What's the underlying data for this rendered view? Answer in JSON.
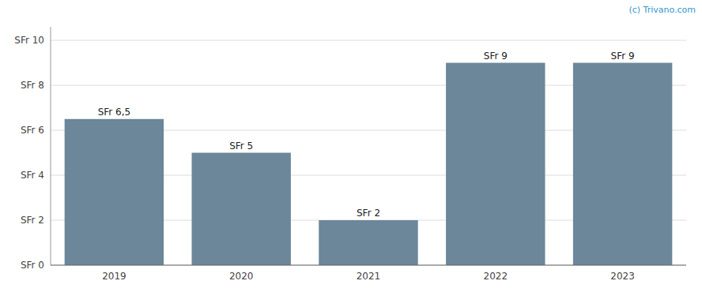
{
  "chart_data": {
    "type": "bar",
    "categories": [
      "2019",
      "2020",
      "2021",
      "2022",
      "2023"
    ],
    "values": [
      6.5,
      5.0,
      2.0,
      9.0,
      9.0
    ],
    "value_labels": [
      "SFr 6,5",
      "SFr 5",
      "SFr 2",
      "SFr 9",
      "SFr 9"
    ],
    "color": "#6b8799",
    "ylim": [
      0,
      10.6
    ],
    "yticks": [
      {
        "value": 0,
        "label": "SFr 0"
      },
      {
        "value": 2,
        "label": "SFr 2"
      },
      {
        "value": 4,
        "label": "SFr 4"
      },
      {
        "value": 6,
        "label": "SFr 6"
      },
      {
        "value": 8,
        "label": "SFr 8"
      },
      {
        "value": 10,
        "label": "SFr 10"
      }
    ],
    "grid": true,
    "data_labels": true,
    "annotations": [
      "(c) Trivano.com"
    ]
  }
}
